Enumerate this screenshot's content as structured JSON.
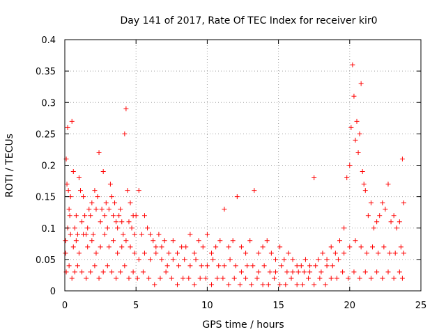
{
  "chart_data": {
    "type": "scatter",
    "title": "Day 141 of 2017, Rate Of TEC Index for receiver kir0",
    "xlabel": "GPS time / hours",
    "ylabel": "ROTI / TECUs",
    "xlim": [
      0,
      25
    ],
    "ylim": [
      0,
      0.4
    ],
    "x_ticks": [
      0,
      5,
      10,
      15,
      20,
      25
    ],
    "y_ticks": [
      0,
      0.05,
      0.1,
      0.15,
      0.2,
      0.25,
      0.3,
      0.35,
      0.4
    ],
    "x_tick_labels": [
      "0",
      "5",
      "10",
      "15",
      "20",
      "25"
    ],
    "y_tick_labels": [
      "0",
      "0.05",
      "0.1",
      "0.15",
      "0.2",
      "0.25",
      "0.3",
      "0.35",
      "0.4"
    ],
    "grid": true,
    "marker": "plus",
    "marker_color": "#ff0000",
    "series": [
      {
        "x": [
          0.05,
          0.1,
          0.15,
          0.2,
          0.25,
          0.3,
          0.35,
          0.4,
          0.5,
          0.6,
          0.7,
          0.8,
          0.9,
          1.0,
          1.1,
          1.2,
          1.3,
          1.4,
          1.5,
          1.6,
          1.7,
          1.8,
          1.9,
          2.0,
          2.1,
          2.2,
          2.3,
          2.4,
          2.5,
          2.6,
          2.7,
          2.8,
          2.9,
          3.0,
          3.1,
          3.2,
          3.3,
          3.4,
          3.5,
          3.6,
          3.7,
          3.8,
          3.9,
          4.0,
          4.1,
          4.2,
          4.3,
          4.4,
          4.5,
          4.6,
          4.7,
          4.8,
          4.9,
          5.0,
          5.2,
          5.4,
          5.6,
          5.8,
          6.0,
          6.2,
          6.4,
          6.6,
          6.8,
          7.0,
          7.3,
          7.6,
          7.9,
          8.2,
          8.5,
          8.8,
          9.1,
          9.4,
          9.7,
          10.0,
          10.3,
          10.6,
          10.9,
          11.2,
          11.5,
          11.8,
          12.1,
          12.4,
          12.7,
          13.0,
          13.3,
          13.6,
          13.9,
          14.2,
          14.5,
          14.8,
          15.1,
          15.4,
          15.7,
          16.0,
          16.3,
          16.6,
          16.9,
          17.2,
          17.5,
          17.8,
          18.1,
          18.4,
          18.7,
          19.0,
          19.3,
          19.6,
          19.8,
          20.0,
          20.1,
          20.2,
          20.3,
          20.4,
          20.5,
          20.6,
          20.7,
          20.8,
          20.9,
          21.0,
          21.1,
          21.3,
          21.5,
          21.7,
          21.9,
          22.1,
          22.3,
          22.5,
          22.7,
          22.9,
          23.1,
          23.3,
          23.5,
          23.7,
          23.8
        ],
        "y": [
          0.06,
          0.21,
          0.17,
          0.26,
          0.16,
          0.13,
          0.12,
          0.15,
          0.27,
          0.19,
          0.1,
          0.12,
          0.09,
          0.18,
          0.16,
          0.11,
          0.15,
          0.12,
          0.09,
          0.1,
          0.13,
          0.12,
          0.14,
          0.09,
          0.16,
          0.13,
          0.15,
          0.22,
          0.11,
          0.13,
          0.19,
          0.12,
          0.14,
          0.1,
          0.13,
          0.17,
          0.15,
          0.12,
          0.14,
          0.11,
          0.1,
          0.12,
          0.13,
          0.11,
          0.09,
          0.25,
          0.29,
          0.16,
          0.11,
          0.14,
          0.1,
          0.12,
          0.09,
          0.12,
          0.16,
          0.09,
          0.12,
          0.1,
          0.09,
          0.08,
          0.07,
          0.09,
          0.07,
          0.08,
          0.06,
          0.08,
          0.06,
          0.07,
          0.07,
          0.09,
          0.06,
          0.08,
          0.07,
          0.09,
          0.06,
          0.07,
          0.08,
          0.13,
          0.07,
          0.08,
          0.15,
          0.07,
          0.06,
          0.08,
          0.16,
          0.06,
          0.07,
          0.08,
          0.06,
          0.05,
          0.07,
          0.05,
          0.06,
          0.05,
          0.04,
          0.04,
          0.05,
          0.04,
          0.18,
          0.05,
          0.06,
          0.05,
          0.07,
          0.06,
          0.08,
          0.1,
          0.18,
          0.2,
          0.26,
          0.36,
          0.31,
          0.24,
          0.27,
          0.22,
          0.25,
          0.33,
          0.19,
          0.17,
          0.16,
          0.12,
          0.14,
          0.1,
          0.11,
          0.12,
          0.14,
          0.13,
          0.17,
          0.11,
          0.12,
          0.1,
          0.11,
          0.21,
          0.14
        ]
      },
      {
        "x": [
          0.05,
          0.2,
          0.4,
          0.6,
          0.8,
          1.0,
          1.3,
          1.6,
          1.9,
          2.2,
          2.5,
          2.8,
          3.1,
          3.4,
          3.7,
          4.0,
          4.3,
          4.6,
          4.9,
          5.2,
          5.6,
          6.0,
          6.4,
          6.8,
          7.2,
          7.6,
          8.0,
          8.4,
          8.8,
          9.2,
          9.6,
          10.0,
          10.4,
          10.8,
          11.2,
          11.6,
          12.0,
          12.4,
          12.8,
          13.2,
          13.6,
          14.0,
          14.4,
          14.8,
          15.2,
          15.6,
          16.0,
          16.4,
          16.8,
          17.2,
          17.6,
          18.0,
          18.4,
          18.8,
          19.2,
          19.6,
          20.0,
          20.4,
          20.8,
          21.2,
          21.6,
          22.0,
          22.4,
          22.8,
          23.2,
          23.6,
          23.8
        ],
        "y": [
          0.08,
          0.1,
          0.09,
          0.07,
          0.08,
          0.06,
          0.09,
          0.07,
          0.08,
          0.06,
          0.07,
          0.09,
          0.07,
          0.08,
          0.06,
          0.07,
          0.08,
          0.07,
          0.06,
          0.05,
          0.06,
          0.05,
          0.06,
          0.05,
          0.04,
          0.05,
          0.04,
          0.05,
          0.04,
          0.05,
          0.04,
          0.04,
          0.05,
          0.04,
          0.04,
          0.05,
          0.04,
          0.03,
          0.04,
          0.04,
          0.03,
          0.04,
          0.03,
          0.03,
          0.04,
          0.03,
          0.03,
          0.03,
          0.03,
          0.03,
          0.04,
          0.03,
          0.04,
          0.04,
          0.05,
          0.06,
          0.07,
          0.08,
          0.07,
          0.06,
          0.07,
          0.06,
          0.07,
          0.06,
          0.06,
          0.07,
          0.06
        ]
      },
      {
        "x": [
          0.1,
          0.3,
          0.5,
          0.7,
          0.9,
          1.2,
          1.5,
          1.8,
          2.1,
          2.4,
          2.7,
          3.0,
          3.3,
          3.6,
          3.9,
          4.2,
          4.5,
          4.8,
          5.1,
          5.5,
          5.9,
          6.3,
          6.7,
          7.1,
          7.5,
          7.9,
          8.3,
          8.7,
          9.1,
          9.5,
          9.9,
          10.3,
          10.7,
          11.1,
          11.5,
          11.9,
          12.3,
          12.7,
          13.1,
          13.5,
          13.9,
          14.3,
          14.7,
          15.1,
          15.5,
          15.9,
          16.3,
          16.7,
          17.1,
          17.5,
          17.9,
          18.3,
          18.7,
          19.1,
          19.5,
          19.9,
          20.3,
          20.7,
          21.1,
          21.5,
          21.9,
          22.3,
          22.7,
          23.1,
          23.5,
          23.7
        ],
        "y": [
          0.03,
          0.04,
          0.02,
          0.03,
          0.04,
          0.03,
          0.02,
          0.03,
          0.04,
          0.02,
          0.03,
          0.04,
          0.03,
          0.02,
          0.03,
          0.04,
          0.02,
          0.03,
          0.02,
          0.03,
          0.02,
          0.01,
          0.02,
          0.03,
          0.02,
          0.01,
          0.02,
          0.02,
          0.01,
          0.02,
          0.02,
          0.01,
          0.02,
          0.02,
          0.01,
          0.02,
          0.01,
          0.02,
          0.01,
          0.02,
          0.01,
          0.01,
          0.02,
          0.01,
          0.01,
          0.02,
          0.01,
          0.01,
          0.02,
          0.01,
          0.02,
          0.01,
          0.02,
          0.02,
          0.03,
          0.02,
          0.03,
          0.02,
          0.03,
          0.02,
          0.03,
          0.02,
          0.03,
          0.02,
          0.03,
          0.02
        ]
      }
    ]
  }
}
